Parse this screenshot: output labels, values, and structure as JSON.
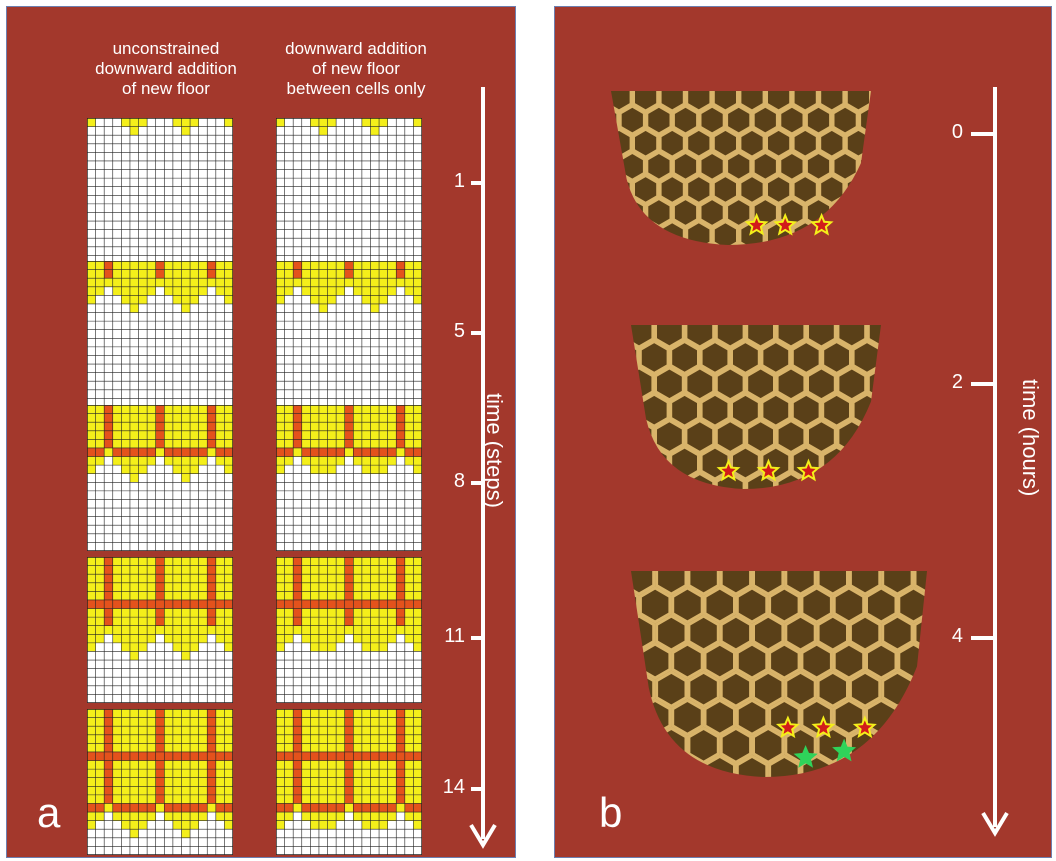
{
  "panel_a": {
    "letter": "a",
    "col1_header": "unconstrained\ndownward addition\nof new floor",
    "col2_header": "downward addition\nof new floor\nbetween cells only",
    "axis_label": "time (steps)",
    "ticks": [
      "1",
      "5",
      "8",
      "11",
      "14"
    ]
  },
  "panel_b": {
    "letter": "b",
    "axis_label": "time (hours)",
    "ticks": [
      "0",
      "2",
      "4"
    ]
  },
  "colors": {
    "background": "#a3382c",
    "yellow": "#f4ef1a",
    "orange": "#e4521c",
    "grid_line": "#222222",
    "comb": "#9a7634",
    "star_red": "#d21b1b",
    "star_green": "#2fd35a"
  }
}
